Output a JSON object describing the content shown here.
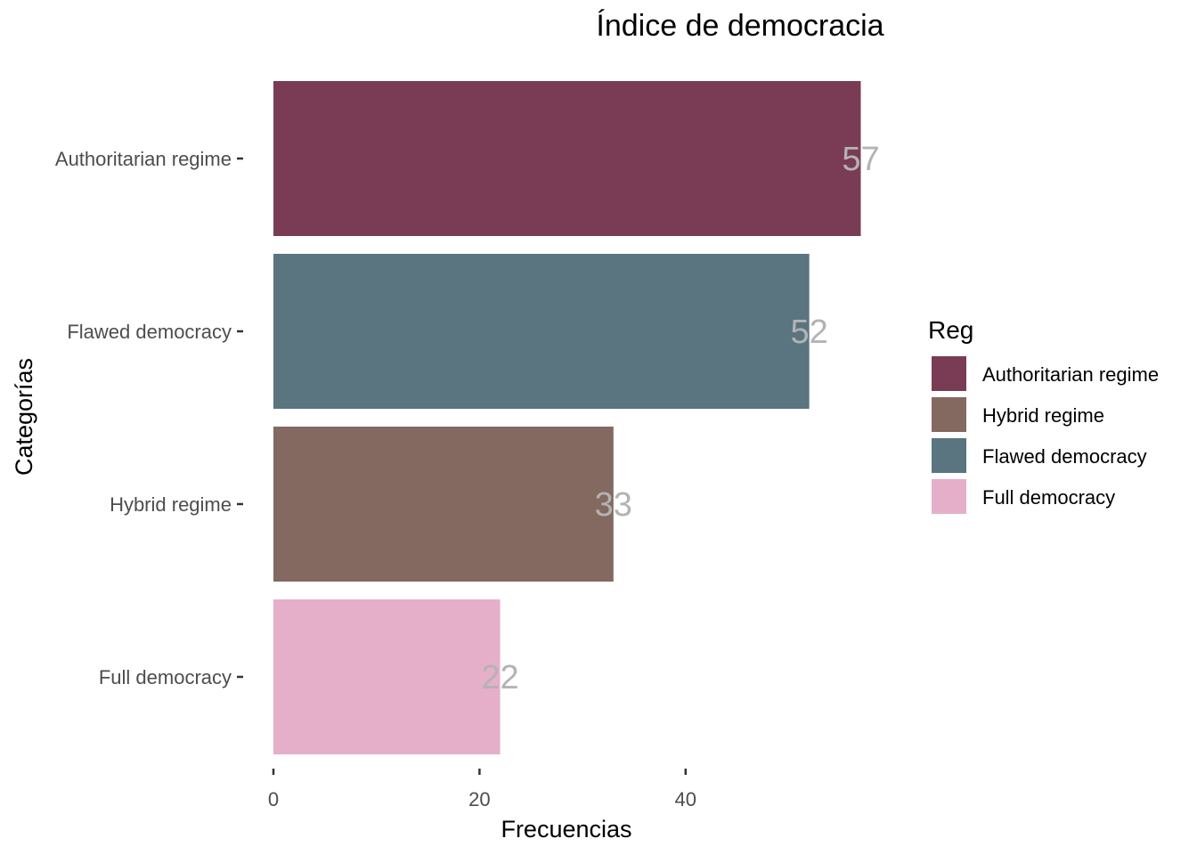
{
  "chart_data": {
    "type": "bar",
    "orientation": "horizontal",
    "title": "Índice de democracia",
    "xlabel": "Frecuencias",
    "ylabel": "Categorías",
    "categories": [
      "Authoritarian regime",
      "Flawed democracy",
      "Hybrid regime",
      "Full democracy"
    ],
    "values": [
      57,
      52,
      33,
      22
    ],
    "data_labels": [
      "57",
      "52",
      "33",
      "22"
    ],
    "colors": [
      "#7a3b54",
      "#5a7480",
      "#836960",
      "#e5afca"
    ],
    "xlim": [
      0,
      57
    ],
    "xticks": [
      0,
      20,
      40
    ],
    "xtick_labels": [
      "0",
      "20",
      "40"
    ],
    "grid": false,
    "legend": {
      "title": "Reg",
      "placement": "right",
      "entries": [
        {
          "label": "Authoritarian regime",
          "color": "#7a3b54"
        },
        {
          "label": "Hybrid regime",
          "color": "#836960"
        },
        {
          "label": "Flawed democracy",
          "color": "#5a7480"
        },
        {
          "label": "Full democracy",
          "color": "#e5afca"
        }
      ]
    }
  }
}
